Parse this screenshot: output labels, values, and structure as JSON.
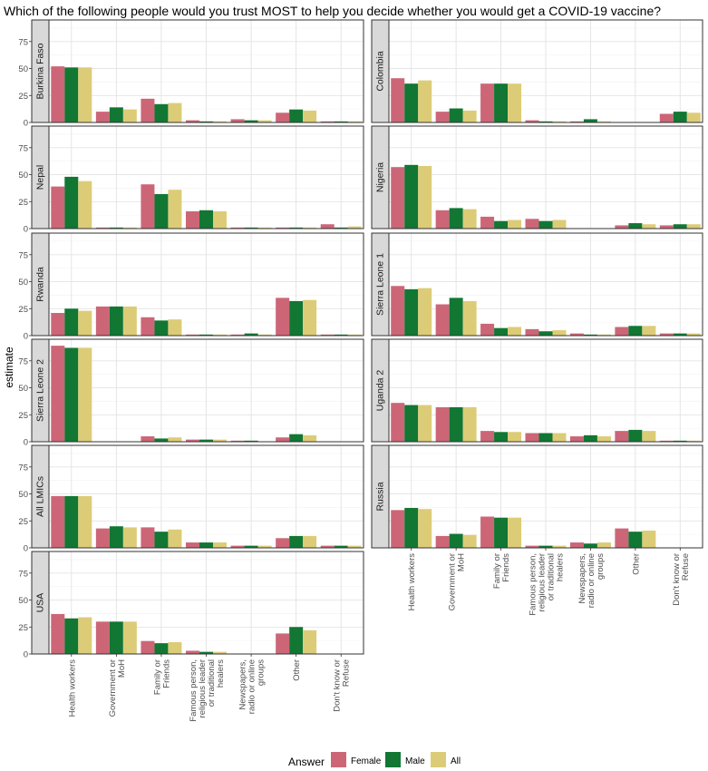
{
  "chart_data": {
    "type": "bar",
    "title": "Which of the following people would you trust MOST to help you decide whether you would get a COVID-19 vaccine?",
    "ylabel": "estimate",
    "xlabel": "",
    "ylim": [
      0,
      95
    ],
    "yticks": [
      0,
      25,
      50,
      75
    ],
    "grid": true,
    "legend": {
      "title": "Answer",
      "position": "bottom",
      "entries": [
        "Female",
        "Male",
        "All"
      ]
    },
    "colors": {
      "Female": "#cc6677",
      "Male": "#117733",
      "All": "#ddcc77"
    },
    "categories": [
      [
        "Health workers"
      ],
      [
        "Government or",
        "MoH"
      ],
      [
        "Family or",
        "Friends"
      ],
      [
        "Famous person,",
        "religious leader",
        "or traditional",
        "healers"
      ],
      [
        "Newspapers,",
        "radio or online",
        "groups"
      ],
      [
        "Other"
      ],
      [
        "Don't know or",
        "Refuse"
      ]
    ],
    "series_names": [
      "Female",
      "Male",
      "All"
    ],
    "panels": [
      {
        "name": "Burkina Faso",
        "values": [
          [
            52,
            51,
            51
          ],
          [
            10,
            14,
            12
          ],
          [
            22,
            17,
            18
          ],
          [
            2,
            1,
            1
          ],
          [
            3,
            2,
            2
          ],
          [
            9,
            12,
            11
          ],
          [
            1,
            1,
            1
          ]
        ]
      },
      {
        "name": "Colombia",
        "values": [
          [
            41,
            36,
            39
          ],
          [
            10,
            13,
            11
          ],
          [
            36,
            36,
            36
          ],
          [
            2,
            1,
            1
          ],
          [
            1,
            3,
            1
          ],
          [
            null,
            null,
            null
          ],
          [
            8,
            10,
            9
          ]
        ]
      },
      {
        "name": "Nepal",
        "values": [
          [
            39,
            48,
            44
          ],
          [
            1,
            1,
            1
          ],
          [
            41,
            32,
            36
          ],
          [
            16,
            17,
            16
          ],
          [
            1,
            1,
            1
          ],
          [
            1,
            1,
            1
          ],
          [
            4,
            1,
            2
          ]
        ]
      },
      {
        "name": "Nigeria",
        "values": [
          [
            57,
            59,
            58
          ],
          [
            17,
            19,
            18
          ],
          [
            11,
            7,
            8
          ],
          [
            9,
            7,
            8
          ],
          [
            null,
            null,
            null
          ],
          [
            3,
            5,
            4
          ],
          [
            3,
            4,
            4
          ]
        ]
      },
      {
        "name": "Rwanda",
        "values": [
          [
            21,
            25,
            23
          ],
          [
            27,
            27,
            27
          ],
          [
            17,
            14,
            15
          ],
          [
            1,
            1,
            1
          ],
          [
            1,
            2,
            1
          ],
          [
            35,
            32,
            33
          ],
          [
            1,
            1,
            1
          ]
        ]
      },
      {
        "name": "Sierra Leone 1",
        "values": [
          [
            46,
            43,
            44
          ],
          [
            29,
            35,
            32
          ],
          [
            11,
            7,
            8
          ],
          [
            6,
            4,
            5
          ],
          [
            2,
            1,
            1
          ],
          [
            8,
            9,
            9
          ],
          [
            2,
            2,
            2
          ]
        ]
      },
      {
        "name": "Sierra Leone 2",
        "values": [
          [
            89,
            87,
            87
          ],
          [
            null,
            null,
            null
          ],
          [
            5,
            3,
            4
          ],
          [
            2,
            2,
            2
          ],
          [
            1,
            1,
            null
          ],
          [
            4,
            7,
            6
          ],
          [
            null,
            null,
            null
          ]
        ]
      },
      {
        "name": "Uganda 2",
        "values": [
          [
            36,
            34,
            34
          ],
          [
            32,
            32,
            32
          ],
          [
            10,
            9,
            9
          ],
          [
            8,
            8,
            8
          ],
          [
            5,
            6,
            5
          ],
          [
            10,
            11,
            10
          ],
          [
            1,
            1,
            1
          ]
        ]
      },
      {
        "name": "All LMICs",
        "values": [
          [
            48,
            48,
            48
          ],
          [
            18,
            20,
            19
          ],
          [
            19,
            15,
            17
          ],
          [
            5,
            5,
            5
          ],
          [
            2,
            2,
            2
          ],
          [
            9,
            11,
            11
          ],
          [
            2,
            2,
            2
          ]
        ]
      },
      {
        "name": "Russia",
        "values": [
          [
            35,
            37,
            36
          ],
          [
            11,
            13,
            12
          ],
          [
            29,
            28,
            28
          ],
          [
            2,
            2,
            2
          ],
          [
            5,
            4,
            5
          ],
          [
            18,
            15,
            16
          ],
          [
            null,
            null,
            null
          ]
        ]
      },
      {
        "name": "USA",
        "values": [
          [
            37,
            33,
            34
          ],
          [
            30,
            30,
            30
          ],
          [
            12,
            10,
            11
          ],
          [
            3,
            2,
            2
          ],
          [
            null,
            null,
            null
          ],
          [
            19,
            25,
            22
          ],
          [
            null,
            null,
            null
          ]
        ]
      }
    ]
  }
}
